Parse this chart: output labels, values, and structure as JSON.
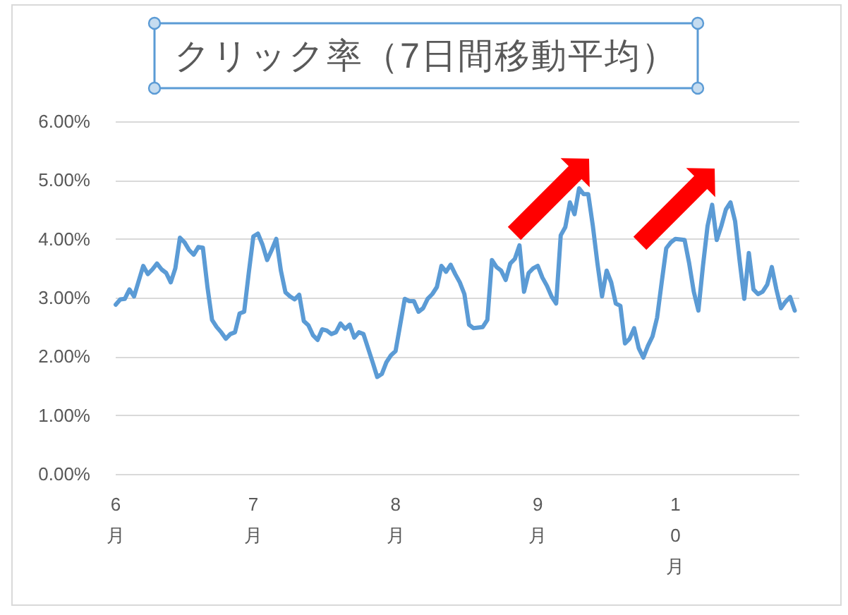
{
  "chart_data": {
    "type": "line",
    "title": "クリック率（7日間移動平均）",
    "x": [
      "--06-01",
      "--06-02",
      "--06-03",
      "--06-04",
      "--06-05",
      "--06-07",
      "--06-08",
      "--06-09",
      "--06-10",
      "--06-11",
      "--06-12",
      "--06-13",
      "--06-14",
      "--06-15",
      "--06-16",
      "--06-17",
      "--06-18",
      "--06-19",
      "--06-20",
      "--06-21",
      "--06-22",
      "--06-23",
      "--06-24",
      "--06-25",
      "--06-26",
      "--06-27",
      "--06-28",
      "--06-29",
      "--06-30",
      "--07-01",
      "--07-02",
      "--07-03",
      "--07-04",
      "--07-05",
      "--07-06",
      "--07-07",
      "--07-08",
      "--07-09",
      "--07-10",
      "--07-11",
      "--07-12",
      "--07-13",
      "--07-14",
      "--07-15",
      "--07-16",
      "--07-17",
      "--07-18",
      "--07-19",
      "--07-20",
      "--07-21",
      "--07-22",
      "--07-23",
      "--07-24",
      "--07-25",
      "--07-26",
      "--07-27",
      "--07-28",
      "--07-29",
      "--07-30",
      "--07-31",
      "--08-01",
      "--08-03",
      "--08-04",
      "--08-05",
      "--08-06",
      "--08-07",
      "--08-08",
      "--08-09",
      "--08-10",
      "--08-11",
      "--08-12",
      "--08-13",
      "--08-14",
      "--08-15",
      "--08-16",
      "--08-17",
      "--08-18",
      "--08-20",
      "--08-21",
      "--08-22",
      "--08-23",
      "--08-24",
      "--08-25",
      "--08-26",
      "--08-27",
      "--08-28",
      "--08-29",
      "--08-30",
      "--08-31",
      "--09-01",
      "--09-02",
      "--09-03",
      "--09-04",
      "--09-05",
      "--09-06",
      "--09-07",
      "--09-08",
      "--09-09",
      "--09-10",
      "--09-11",
      "--09-12",
      "--09-13",
      "--09-14",
      "--09-15",
      "--09-16",
      "--09-17",
      "--09-18",
      "--09-19",
      "--09-20",
      "--09-21",
      "--09-22",
      "--09-23",
      "--09-24",
      "--09-25",
      "--09-26",
      "--09-27",
      "--09-28",
      "--09-29",
      "--09-30",
      "--10-01",
      "--10-02",
      "--10-03",
      "--10-04",
      "--10-05",
      "--10-06",
      "--10-07",
      "--10-08",
      "--10-09",
      "--10-10",
      "--10-11",
      "--10-12",
      "--10-13",
      "--10-14",
      "--10-15",
      "--10-16",
      "--10-17",
      "--10-18",
      "--10-19",
      "--10-20",
      "--10-21",
      "--10-22",
      "--10-23",
      "--10-24",
      "--10-25",
      "--10-26",
      "--10-27"
    ],
    "series": [
      {
        "color": "#5b9bd5",
        "values": [
          2.88,
          2.97,
          2.98,
          3.14,
          3.02,
          3.54,
          3.4,
          3.48,
          3.58,
          3.48,
          3.42,
          3.26,
          3.5,
          4.02,
          3.94,
          3.81,
          3.73,
          3.86,
          3.85,
          3.18,
          2.62,
          2.5,
          2.41,
          2.3,
          2.38,
          2.41,
          2.73,
          2.76,
          3.42,
          4.04,
          4.09,
          3.9,
          3.64,
          3.81,
          4.0,
          3.46,
          3.09,
          3.02,
          2.97,
          3.05,
          2.6,
          2.53,
          2.36,
          2.28,
          2.46,
          2.44,
          2.38,
          2.41,
          2.56,
          2.47,
          2.54,
          2.32,
          2.41,
          2.38,
          2.14,
          1.9,
          1.65,
          1.7,
          1.9,
          2.02,
          2.09,
          2.98,
          2.94,
          2.94,
          2.76,
          2.82,
          2.98,
          3.06,
          3.18,
          3.54,
          3.44,
          3.56,
          3.4,
          3.26,
          3.06,
          2.54,
          2.48,
          2.5,
          2.62,
          3.64,
          3.52,
          3.46,
          3.3,
          3.58,
          3.66,
          3.89,
          3.1,
          3.42,
          3.5,
          3.54,
          3.34,
          3.2,
          3.02,
          2.9,
          4.06,
          4.2,
          4.62,
          4.42,
          4.86,
          4.76,
          4.76,
          4.22,
          3.58,
          3.02,
          3.46,
          3.26,
          2.9,
          2.86,
          2.22,
          2.3,
          2.48,
          2.14,
          1.98,
          2.18,
          2.34,
          2.66,
          3.26,
          3.84,
          3.94,
          4.0,
          3.99,
          3.98,
          3.58,
          3.1,
          2.78,
          3.54,
          4.22,
          4.58,
          3.98,
          4.22,
          4.5,
          4.62,
          4.3,
          3.62,
          2.98,
          3.76,
          3.14,
          3.06,
          3.1,
          3.22,
          3.52,
          3.14,
          2.82,
          2.93,
          3.01,
          2.78
        ]
      }
    ],
    "xlim": [
      "--06-01",
      "--10-28"
    ],
    "xticks": [
      {
        "value": "--06-01",
        "label": "6月"
      },
      {
        "value": "--07-01",
        "label": "7月"
      },
      {
        "value": "--08-01",
        "label": "8月"
      },
      {
        "value": "--09-01",
        "label": "9月"
      },
      {
        "value": "--10-01",
        "label": "10月"
      }
    ],
    "ylim": [
      0,
      6
    ],
    "yticks": [
      {
        "value": 0,
        "label": "0.00%"
      },
      {
        "value": 1,
        "label": "1.00%"
      },
      {
        "value": 2,
        "label": "2.00%"
      },
      {
        "value": 3,
        "label": "3.00%"
      },
      {
        "value": 4,
        "label": "4.00%"
      },
      {
        "value": 5,
        "label": "5.00%"
      },
      {
        "value": 6,
        "label": "6.00%"
      }
    ],
    "grid": "y"
  }
}
